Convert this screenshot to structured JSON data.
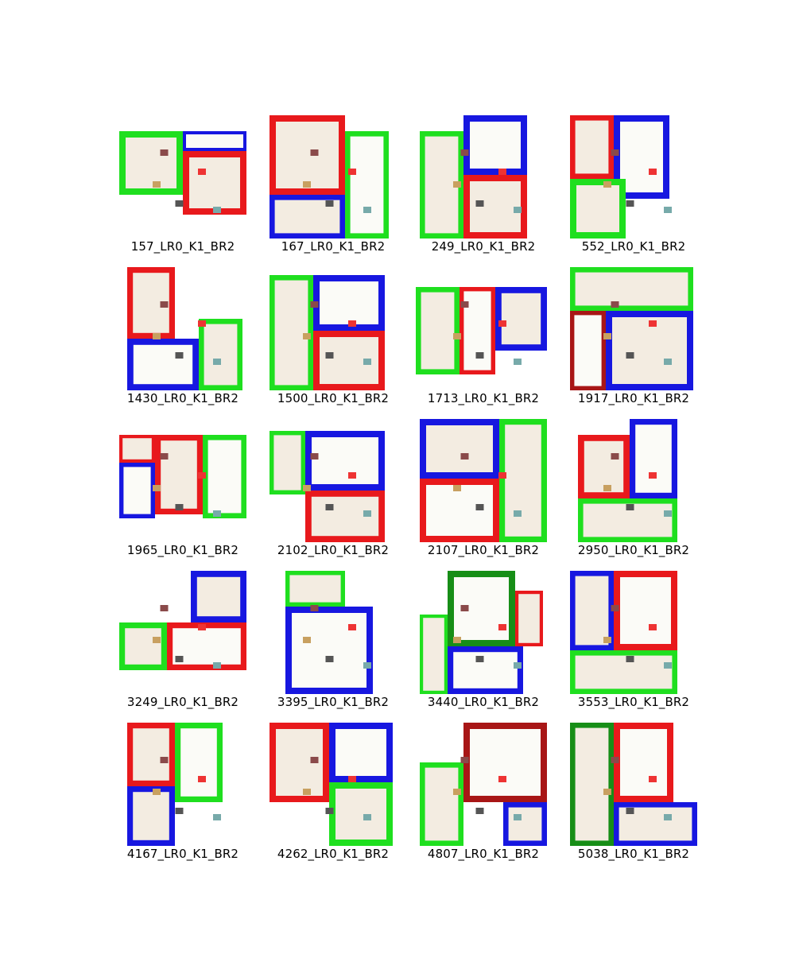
{
  "colors": {
    "red": "#e8191c",
    "dark_red": "#a81616",
    "green": "#1fdf1f",
    "dark_green": "#178e17",
    "blue": "#1717e0",
    "dark_blue": "#11119a",
    "floor": "#fbfbf7",
    "floor_warm": "#f3ece1",
    "caption": "#000000"
  },
  "panels": [
    {
      "label": "157_LR0_K1_BR2"
    },
    {
      "label": "167_LR0_K1_BR2"
    },
    {
      "label": "249_LR0_K1_BR2"
    },
    {
      "label": "552_LR0_K1_BR2"
    },
    {
      "label": "1430_LR0_K1_BR2"
    },
    {
      "label": "1500_LR0_K1_BR2"
    },
    {
      "label": "1713_LR0_K1_BR2"
    },
    {
      "label": "1917_LR0_K1_BR2"
    },
    {
      "label": "1965_LR0_K1_BR2"
    },
    {
      "label": "2102_LR0_K1_BR2"
    },
    {
      "label": "2107_LR0_K1_BR2"
    },
    {
      "label": "2950_LR0_K1_BR2"
    },
    {
      "label": "3249_LR0_K1_BR2"
    },
    {
      "label": "3395_LR0_K1_BR2"
    },
    {
      "label": "3440_LR0_K1_BR2"
    },
    {
      "label": "3553_LR0_K1_BR2"
    },
    {
      "label": "4167_LR0_K1_BR2"
    },
    {
      "label": "4262_LR0_K1_BR2"
    },
    {
      "label": "4807_LR0_K1_BR2"
    },
    {
      "label": "5038_LR0_K1_BR2"
    }
  ]
}
